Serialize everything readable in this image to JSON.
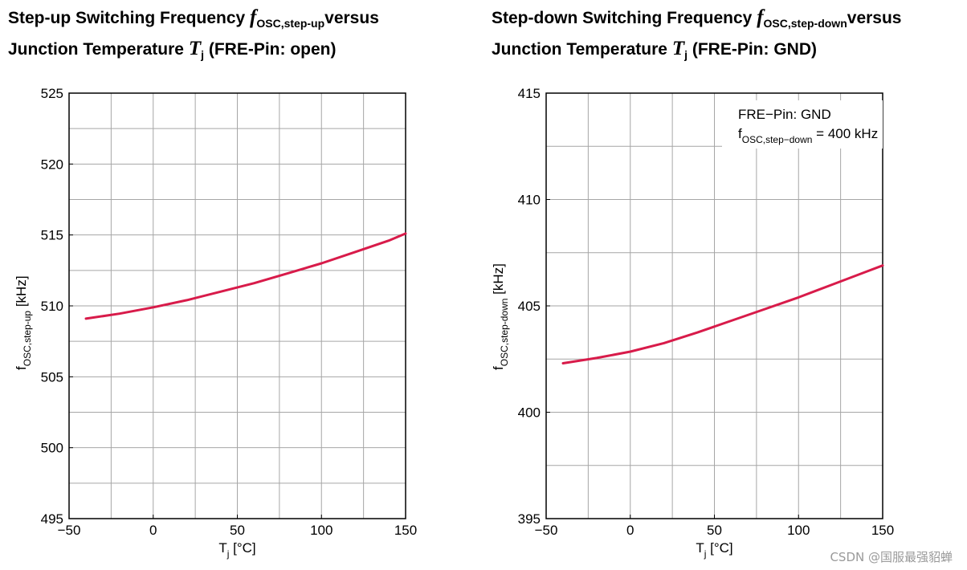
{
  "charts": [
    {
      "title_prefix": "Step-up Switching Frequency",
      "title_sym": "f",
      "title_sub": "OSC,step-up",
      "title_suffix": "versus",
      "title_line2": "Junction Temperature",
      "title_line2_sym": "T",
      "title_line2_sub": "j",
      "title_line2_suffix": "(FRE-Pin: open)"
    },
    {
      "title_prefix": "Step-down Switching Frequency",
      "title_sym": "f",
      "title_sub": "OSC,step-down",
      "title_suffix": "versus",
      "title_line2": "Junction Temperature",
      "title_line2_sym": "T",
      "title_line2_sub": "j",
      "title_line2_suffix": "(FRE-Pin: GND)"
    }
  ],
  "chart_data": [
    {
      "type": "line",
      "title": "Step-up Switching Frequency fOSC,step-up versus Junction Temperature Tj (FRE-Pin: open)",
      "xlabel": "T",
      "xlabel_sub": "j",
      "xlabel_unit": "[°C]",
      "ylabel": "f",
      "ylabel_sub": "OSC,step-up",
      "ylabel_unit": "[kHz]",
      "xlim": [
        -50,
        150
      ],
      "ylim": [
        495,
        525
      ],
      "xticks": [
        -50,
        0,
        50,
        100,
        150
      ],
      "xtick_labels": [
        "−50",
        "0",
        "50",
        "100",
        "150"
      ],
      "yticks": [
        495,
        500,
        505,
        510,
        515,
        520,
        525
      ],
      "ytick_labels": [
        "495",
        "500",
        "505",
        "510",
        "515",
        "520",
        "525"
      ],
      "grid": true,
      "line_color": "#d81b4a",
      "series": [
        {
          "name": "fOSC,step-up",
          "x": [
            -40,
            -20,
            0,
            20,
            40,
            60,
            80,
            100,
            120,
            140,
            150
          ],
          "y": [
            509.1,
            509.45,
            509.9,
            510.4,
            511.0,
            511.6,
            512.3,
            513.0,
            513.8,
            514.6,
            515.1
          ]
        }
      ]
    },
    {
      "type": "line",
      "title": "Step-down Switching Frequency fOSC,step-down versus Junction Temperature Tj (FRE-Pin: GND)",
      "xlabel": "T",
      "xlabel_sub": "j",
      "xlabel_unit": "[°C]",
      "ylabel": "f",
      "ylabel_sub": "OSC,step-down",
      "ylabel_unit": "[kHz]",
      "xlim": [
        -50,
        150
      ],
      "ylim": [
        395,
        415
      ],
      "xticks": [
        -50,
        0,
        50,
        100,
        150
      ],
      "xtick_labels": [
        "−50",
        "0",
        "50",
        "100",
        "150"
      ],
      "yticks": [
        395,
        400,
        405,
        410,
        415
      ],
      "ytick_labels": [
        "395",
        "400",
        "405",
        "410",
        "415"
      ],
      "grid": true,
      "line_color": "#d81b4a",
      "legend_line1": "FRE−Pin: GND",
      "legend_line2_sym": "f",
      "legend_line2_sub": "OSC,step−down",
      "legend_line2_val": "= 400 kHz",
      "series": [
        {
          "name": "fOSC,step-down",
          "x": [
            -40,
            -20,
            0,
            20,
            40,
            60,
            80,
            100,
            120,
            140,
            150
          ],
          "y": [
            402.3,
            402.55,
            402.85,
            403.25,
            403.75,
            404.3,
            404.85,
            405.4,
            406.0,
            406.6,
            406.9
          ]
        }
      ]
    }
  ],
  "watermark": "CSDN @国服最强貂蝉"
}
